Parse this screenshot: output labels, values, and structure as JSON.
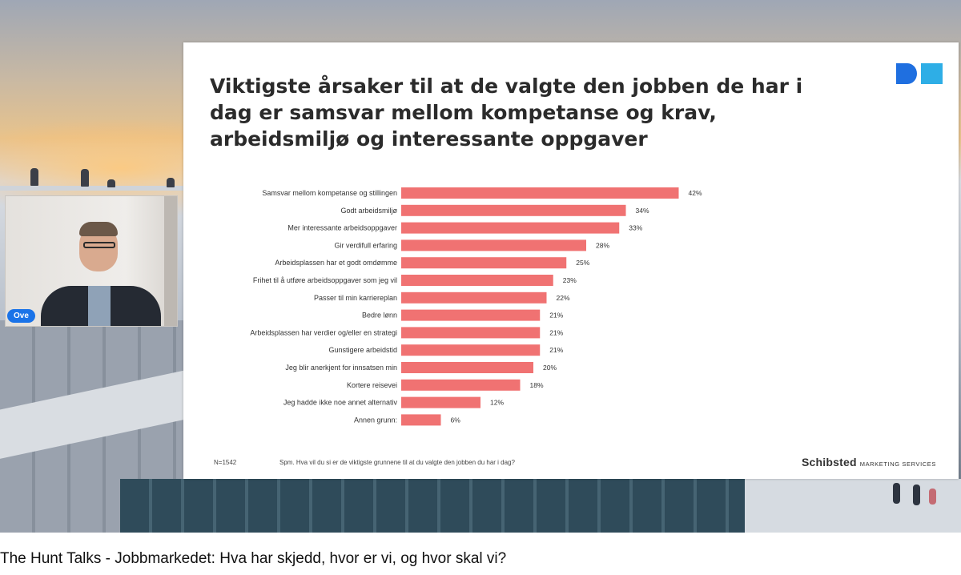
{
  "video": {
    "caption": "The Hunt Talks - Jobbmarkedet: Hva har skjedd, hvor er vi, og hvor skal vi?",
    "speaker_name": "Ove"
  },
  "slide": {
    "title": "Viktigste årsaker til at de valgte den jobben de har i dag er samsvar mellom kompetanse og krav, arbeidsmiljø og interessante oppgaver",
    "sample_size": "N=1542",
    "question": "Spm. Hva vil du si er de viktigste grunnene til at du valgte den jobben du har i dag?",
    "brand_name": "Schibsted",
    "brand_sub": "MARKETING SERVICES",
    "logo_icon": "schibsted-logo-icon",
    "logo_colors": [
      "#1f6fe0",
      "#2eaee6"
    ]
  },
  "chart_data": {
    "type": "bar",
    "orientation": "horizontal",
    "categories": [
      "Samsvar mellom kompetanse og stillingen",
      "Godt arbeidsmiljø",
      "Mer interessante arbeidsoppgaver",
      "Gir verdifull erfaring",
      "Arbeidsplassen har et godt omdømme",
      "Frihet til å utføre arbeidsoppgaver som jeg vil",
      "Passer til min karriereplan",
      "Bedre lønn",
      "Arbeidsplassen har verdier og/eller en strategi",
      "Gunstigere arbeidstid",
      "Jeg blir anerkjent for innsatsen min",
      "Kortere reisevei",
      "Jeg hadde ikke noe annet alternativ",
      "Annen grunn:"
    ],
    "values": [
      42,
      34,
      33,
      28,
      25,
      23,
      22,
      21,
      21,
      21,
      20,
      18,
      12,
      6
    ],
    "value_labels": [
      "42%",
      "34%",
      "33%",
      "28%",
      "25%",
      "23%",
      "22%",
      "21%",
      "21%",
      "21%",
      "20%",
      "18%",
      "12%",
      "6%"
    ],
    "bar_color": "#f07272",
    "grid": false,
    "legend": "none"
  }
}
